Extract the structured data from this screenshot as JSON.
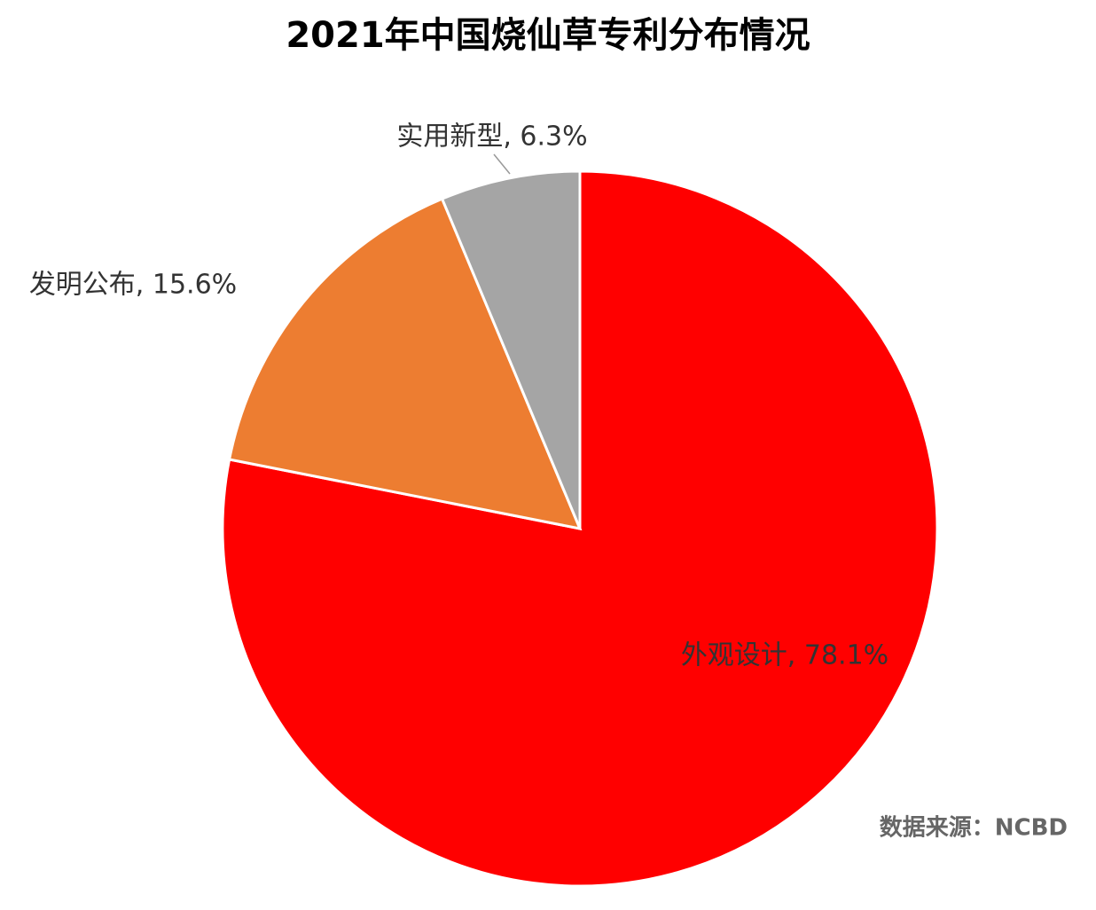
{
  "chart_data": {
    "type": "pie",
    "title": "2021年中国烧仙草专利分布情况",
    "values": [
      78.1,
      15.6,
      6.3
    ],
    "value_labels": [
      "外观设计, 78.1%",
      "发明公布, 15.6%",
      "实用新型, 6.3%"
    ],
    "colors": [
      "#ff0000",
      "#ed7d31",
      "#a5a5a5"
    ],
    "source": "数据来源：NCBD"
  }
}
